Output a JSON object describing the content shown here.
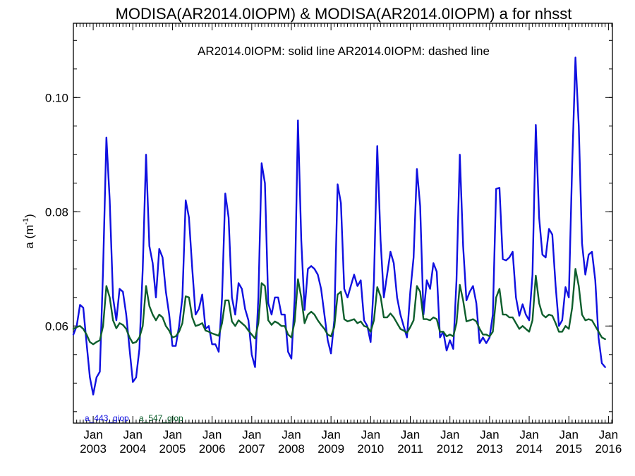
{
  "chart_data": {
    "type": "line",
    "title": "MODISA(AR2014.0IOPM) & MODISA(AR2014.0IOPM)  a for nhsst",
    "annotation": "AR2014.0IOPM: solid line   AR2014.0IOPM: dashed line",
    "ylabel": "a (m",
    "ylabel_sup": "-1",
    "ylabel_close": ")",
    "xlim": [
      2002.5,
      2016.1
    ],
    "ylim": [
      0.043,
      0.113
    ],
    "grid": false,
    "y_ticks": [
      0.06,
      0.08,
      0.1
    ],
    "y_tick_labels": [
      "0.06",
      "0.08",
      "0.10"
    ],
    "x_ticks": [
      2003,
      2004,
      2005,
      2006,
      2007,
      2008,
      2009,
      2010,
      2011,
      2012,
      2013,
      2014,
      2015,
      2016
    ],
    "x_tick_month": "Jan",
    "x_tick_years": [
      "2003",
      "2004",
      "2005",
      "2006",
      "2007",
      "2008",
      "2009",
      "2010",
      "2011",
      "2012",
      "2013",
      "2014",
      "2015",
      "2016"
    ],
    "x_start": "2002-07",
    "series": [
      {
        "name": "a_443_giop",
        "color": "#1010e0",
        "values": [
          0.0585,
          0.06,
          0.0637,
          0.0632,
          0.057,
          0.051,
          0.048,
          0.051,
          0.052,
          0.07,
          0.093,
          0.082,
          0.065,
          0.061,
          0.0665,
          0.066,
          0.062,
          0.056,
          0.0502,
          0.051,
          0.056,
          0.07,
          0.09,
          0.074,
          0.071,
          0.065,
          0.0735,
          0.072,
          0.066,
          0.062,
          0.0565,
          0.0565,
          0.06,
          0.065,
          0.082,
          0.079,
          0.07,
          0.062,
          0.063,
          0.0655,
          0.0595,
          0.06,
          0.0568,
          0.0568,
          0.0555,
          0.065,
          0.0832,
          0.079,
          0.065,
          0.062,
          0.0675,
          0.0665,
          0.063,
          0.061,
          0.055,
          0.0528,
          0.065,
          0.0885,
          0.085,
          0.064,
          0.062,
          0.065,
          0.065,
          0.062,
          0.062,
          0.0555,
          0.0543,
          0.065,
          0.096,
          0.075,
          0.0628,
          0.07,
          0.0705,
          0.07,
          0.069,
          0.0665,
          0.062,
          0.0575,
          0.0552,
          0.061,
          0.0848,
          0.0815,
          0.0665,
          0.065,
          0.067,
          0.069,
          0.067,
          0.068,
          0.061,
          0.06,
          0.0572,
          0.068,
          0.0915,
          0.075,
          0.065,
          0.069,
          0.073,
          0.071,
          0.065,
          0.062,
          0.06,
          0.058,
          0.066,
          0.072,
          0.0875,
          0.081,
          0.062,
          0.068,
          0.0665,
          0.071,
          0.0695,
          0.058,
          0.059,
          0.0557,
          0.0575,
          0.056,
          0.068,
          0.09,
          0.074,
          0.0645,
          0.066,
          0.067,
          0.064,
          0.057,
          0.058,
          0.057,
          0.058,
          0.062,
          0.084,
          0.0842,
          0.0717,
          0.0715,
          0.072,
          0.073,
          0.065,
          0.0618,
          0.0638,
          0.062,
          0.061,
          0.069,
          0.0952,
          0.079,
          0.0725,
          0.072,
          0.077,
          0.076,
          0.067,
          0.06,
          0.061,
          0.0668,
          0.065,
          0.088,
          0.107,
          0.095,
          0.0745,
          0.069,
          0.0725,
          0.073,
          0.068,
          0.058,
          0.0535,
          0.0528
        ]
      },
      {
        "name": "a_547_giop",
        "color": "#0d5e2c",
        "values": [
          0.0595,
          0.0598,
          0.06,
          0.0595,
          0.0585,
          0.0572,
          0.0568,
          0.0572,
          0.0575,
          0.06,
          0.067,
          0.065,
          0.061,
          0.0596,
          0.0605,
          0.0602,
          0.0595,
          0.058,
          0.057,
          0.0572,
          0.058,
          0.06,
          0.067,
          0.0635,
          0.062,
          0.061,
          0.062,
          0.0615,
          0.06,
          0.0592,
          0.058,
          0.0582,
          0.059,
          0.0605,
          0.0652,
          0.065,
          0.0615,
          0.06,
          0.0602,
          0.0605,
          0.0592,
          0.059,
          0.0587,
          0.0585,
          0.0583,
          0.0605,
          0.0645,
          0.0645,
          0.0608,
          0.06,
          0.061,
          0.0605,
          0.06,
          0.0592,
          0.0585,
          0.0578,
          0.0605,
          0.0675,
          0.067,
          0.061,
          0.0602,
          0.0608,
          0.0605,
          0.06,
          0.06,
          0.0585,
          0.058,
          0.0608,
          0.0682,
          0.065,
          0.0605,
          0.062,
          0.0625,
          0.062,
          0.061,
          0.0602,
          0.0595,
          0.0585,
          0.0582,
          0.0598,
          0.0655,
          0.066,
          0.0612,
          0.0608,
          0.061,
          0.0612,
          0.0605,
          0.0608,
          0.06,
          0.0598,
          0.059,
          0.061,
          0.0668,
          0.0652,
          0.0615,
          0.0615,
          0.0622,
          0.0615,
          0.0605,
          0.0595,
          0.0592,
          0.0588,
          0.0598,
          0.061,
          0.067,
          0.066,
          0.0612,
          0.0612,
          0.061,
          0.0615,
          0.0612,
          0.059,
          0.059,
          0.0582,
          0.0585,
          0.0582,
          0.0605,
          0.0672,
          0.0645,
          0.0608,
          0.061,
          0.0612,
          0.0608,
          0.0595,
          0.0585,
          0.0585,
          0.0582,
          0.059,
          0.065,
          0.0665,
          0.062,
          0.062,
          0.0615,
          0.0615,
          0.0605,
          0.0595,
          0.06,
          0.0595,
          0.059,
          0.061,
          0.0688,
          0.064,
          0.062,
          0.0615,
          0.062,
          0.0618,
          0.0605,
          0.059,
          0.059,
          0.06,
          0.0595,
          0.0632,
          0.07,
          0.067,
          0.062,
          0.061,
          0.0612,
          0.061,
          0.06,
          0.059,
          0.058,
          0.0577
        ]
      }
    ]
  }
}
